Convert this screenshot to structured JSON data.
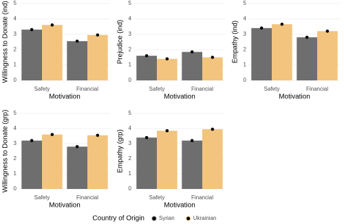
{
  "chart_data": [
    {
      "type": "bar",
      "y_label": "Willingness to Donate (ind)",
      "x_label": "Motivation",
      "categories": [
        "Safety",
        "Financial"
      ],
      "series": [
        {
          "name": "Syrian",
          "color": "#6e6e6e",
          "values": [
            3.3,
            2.55
          ]
        },
        {
          "name": "Ukrainian",
          "color": "#f2c47e",
          "values": [
            3.6,
            2.95
          ]
        }
      ],
      "ylim": [
        0,
        5
      ],
      "yticks": [
        0,
        1,
        2,
        3,
        4,
        5
      ],
      "grid": true
    },
    {
      "type": "bar",
      "y_label": "Prejudice (ind)",
      "x_label": "Motivation",
      "categories": [
        "Safety",
        "Financial"
      ],
      "series": [
        {
          "name": "Syrian",
          "color": "#6e6e6e",
          "values": [
            1.6,
            1.85
          ]
        },
        {
          "name": "Ukrainian",
          "color": "#f2c47e",
          "values": [
            1.4,
            1.5
          ]
        }
      ],
      "ylim": [
        0,
        5
      ],
      "yticks": [
        0,
        1,
        2,
        3,
        4,
        5
      ],
      "grid": true
    },
    {
      "type": "bar",
      "y_label": "Empathy (ind)",
      "x_label": "Motivation",
      "categories": [
        "Safety",
        "Financial"
      ],
      "series": [
        {
          "name": "Syrian",
          "color": "#6e6e6e",
          "values": [
            3.4,
            2.8
          ]
        },
        {
          "name": "Ukrainian",
          "color": "#f2c47e",
          "values": [
            3.65,
            3.2
          ]
        }
      ],
      "ylim": [
        0,
        5
      ],
      "yticks": [
        0,
        1,
        2,
        3,
        4,
        5
      ],
      "grid": true
    },
    {
      "type": "bar",
      "y_label": "Willingness to Donate (grp)",
      "x_label": "Motivation",
      "categories": [
        "Safety",
        "Financial"
      ],
      "series": [
        {
          "name": "Syrian",
          "color": "#6e6e6e",
          "values": [
            3.2,
            2.8
          ]
        },
        {
          "name": "Ukrainian",
          "color": "#f2c47e",
          "values": [
            3.6,
            3.55
          ]
        }
      ],
      "ylim": [
        0,
        5
      ],
      "yticks": [
        0,
        1,
        2,
        3,
        4,
        5
      ],
      "grid": true
    },
    {
      "type": "bar",
      "y_label": "Empathy (grp)",
      "x_label": "Motivation",
      "categories": [
        "Safety",
        "Financial"
      ],
      "series": [
        {
          "name": "Syrian",
          "color": "#6e6e6e",
          "values": [
            3.4,
            3.2
          ]
        },
        {
          "name": "Ukrainian",
          "color": "#f2c47e",
          "values": [
            3.85,
            3.95
          ]
        }
      ],
      "ylim": [
        0,
        5
      ],
      "yticks": [
        0,
        1,
        2,
        3,
        4,
        5
      ],
      "grid": true
    }
  ],
  "legend_title": "Country of Origin"
}
